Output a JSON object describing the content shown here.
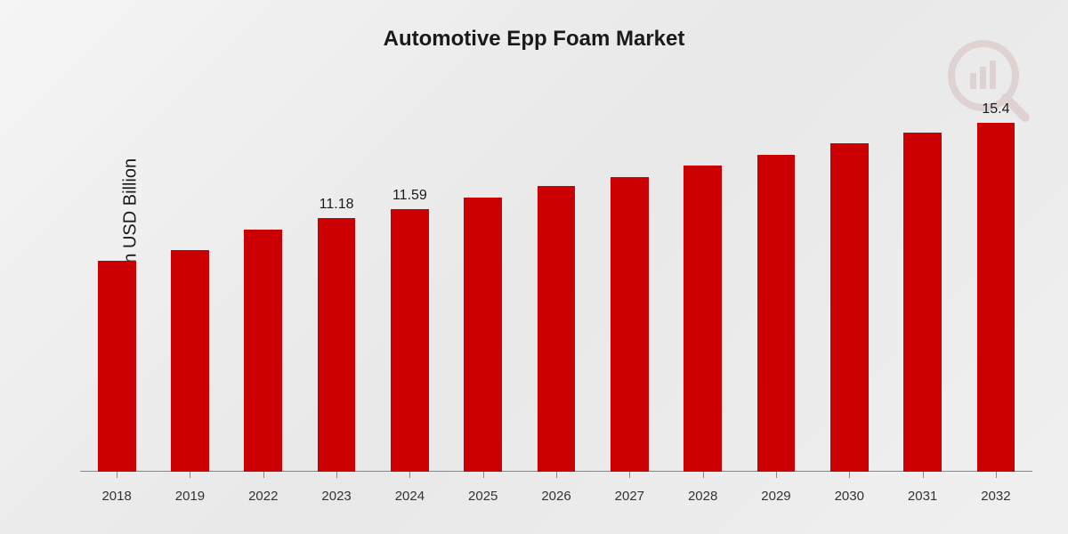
{
  "chart": {
    "type": "bar",
    "title": "Automotive Epp Foam Market",
    "ylabel": "Market Value in USD Billion",
    "title_fontsize": 24,
    "ylabel_fontsize": 20,
    "xlabel_fontsize": 15,
    "value_label_fontsize": 16,
    "background_gradient": [
      "#f5f5f5",
      "#e8e8e8",
      "#f0f0f0"
    ],
    "bar_color": "#cc0000",
    "axis_color": "#888888",
    "text_color": "#1a1a1a",
    "bar_width_pct": 52,
    "y_max": 16.5,
    "categories": [
      "2018",
      "2019",
      "2022",
      "2023",
      "2024",
      "2025",
      "2026",
      "2027",
      "2028",
      "2029",
      "2030",
      "2031",
      "2032"
    ],
    "values": [
      9.3,
      9.8,
      10.7,
      11.18,
      11.59,
      12.1,
      12.6,
      13.0,
      13.5,
      14.0,
      14.5,
      14.95,
      15.4
    ],
    "show_value_label": [
      false,
      false,
      false,
      true,
      true,
      false,
      false,
      false,
      false,
      false,
      false,
      false,
      true
    ],
    "value_labels": [
      "",
      "",
      "",
      "11.18",
      "11.59",
      "",
      "",
      "",
      "",
      "",
      "",
      "",
      "15.4"
    ]
  },
  "watermark": {
    "color": "#8a2a2a"
  }
}
